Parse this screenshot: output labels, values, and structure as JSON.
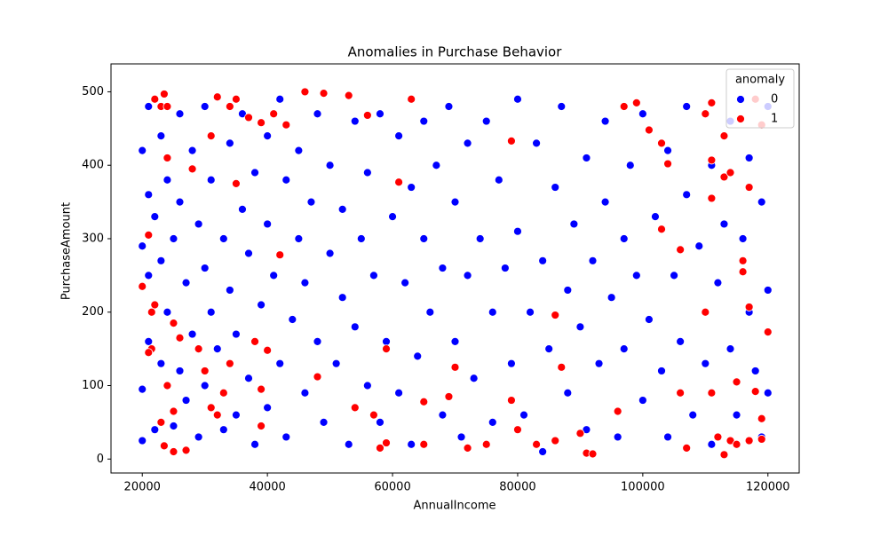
{
  "chart_data": {
    "type": "scatter",
    "title": "Anomalies in Purchase Behavior",
    "x_label": "AnnualIncome",
    "y_label": "PurchaseAmount",
    "xlim": [
      15000,
      125000
    ],
    "ylim": [
      -19,
      538
    ],
    "xticks": [
      20000,
      40000,
      60000,
      80000,
      100000,
      120000
    ],
    "yticks": [
      0,
      100,
      200,
      300,
      400,
      500
    ],
    "grid": false,
    "legend": "upper right",
    "legend_title": "anomaly",
    "series": [
      {
        "name": "0",
        "color": "#0000ff",
        "x": [
          20000,
          20000,
          20000,
          20000,
          21000,
          21000,
          21000,
          21000,
          22000,
          22000,
          23000,
          23000,
          23000,
          24000,
          24000,
          25000,
          25000,
          26000,
          26000,
          26000,
          27000,
          27000,
          28000,
          28000,
          29000,
          29000,
          30000,
          30000,
          30000,
          31000,
          31000,
          32000,
          33000,
          33000,
          34000,
          34000,
          35000,
          35000,
          36000,
          36000,
          37000,
          37000,
          38000,
          38000,
          39000,
          40000,
          40000,
          40000,
          41000,
          42000,
          42000,
          43000,
          43000,
          44000,
          45000,
          45000,
          46000,
          46000,
          47000,
          48000,
          48000,
          49000,
          50000,
          50000,
          51000,
          52000,
          52000,
          53000,
          54000,
          54000,
          55000,
          56000,
          56000,
          57000,
          58000,
          58000,
          59000,
          60000,
          61000,
          61000,
          62000,
          63000,
          63000,
          64000,
          65000,
          65000,
          66000,
          67000,
          68000,
          68000,
          69000,
          70000,
          70000,
          71000,
          72000,
          72000,
          73000,
          74000,
          75000,
          76000,
          76000,
          77000,
          78000,
          79000,
          80000,
          80000,
          81000,
          82000,
          83000,
          84000,
          84000,
          85000,
          86000,
          87000,
          88000,
          88000,
          89000,
          90000,
          91000,
          91000,
          92000,
          93000,
          94000,
          94000,
          95000,
          96000,
          97000,
          97000,
          98000,
          99000,
          100000,
          100000,
          101000,
          102000,
          103000,
          104000,
          104000,
          105000,
          106000,
          107000,
          107000,
          108000,
          109000,
          110000,
          111000,
          111000,
          112000,
          113000,
          114000,
          114000,
          115000,
          116000,
          117000,
          117000,
          118000,
          119000,
          119000,
          120000,
          120000,
          120000
        ],
        "values": [
          420,
          290,
          95,
          25,
          480,
          360,
          250,
          160,
          40,
          330,
          270,
          440,
          130,
          380,
          200,
          300,
          45,
          470,
          120,
          350,
          240,
          80,
          420,
          170,
          320,
          30,
          480,
          260,
          100,
          380,
          200,
          150,
          300,
          40,
          430,
          230,
          170,
          60,
          340,
          470,
          110,
          280,
          390,
          20,
          210,
          320,
          440,
          70,
          250,
          130,
          490,
          380,
          30,
          190,
          300,
          420,
          90,
          240,
          350,
          160,
          470,
          50,
          280,
          400,
          130,
          220,
          340,
          20,
          460,
          180,
          300,
          100,
          390,
          250,
          470,
          50,
          160,
          330,
          440,
          90,
          240,
          370,
          20,
          140,
          460,
          300,
          200,
          400,
          60,
          260,
          480,
          350,
          160,
          30,
          430,
          250,
          110,
          300,
          460,
          200,
          50,
          380,
          260,
          130,
          490,
          310,
          60,
          200,
          430,
          270,
          10,
          150,
          370,
          480,
          230,
          90,
          320,
          180,
          410,
          40,
          270,
          130,
          460,
          350,
          220,
          30,
          300,
          150,
          400,
          250,
          80,
          470,
          190,
          330,
          120,
          420,
          30,
          250,
          160,
          360,
          480,
          60,
          290,
          130,
          400,
          20,
          240,
          320,
          150,
          460,
          60,
          300,
          200,
          410,
          120,
          350,
          30,
          230,
          90,
          480
        ]
      },
      {
        "name": "1",
        "color": "#ff0000",
        "x": [
          20000,
          21000,
          21500,
          21500,
          22000,
          21000,
          22000,
          23000,
          23500,
          24000,
          24000,
          24000,
          23000,
          23500,
          25000,
          25000,
          25000,
          26000,
          27000,
          28000,
          29000,
          30000,
          31000,
          31000,
          32000,
          32000,
          33000,
          34000,
          35000,
          34000,
          35000,
          37000,
          38000,
          39000,
          39000,
          39000,
          40000,
          41000,
          42000,
          43000,
          46000,
          48000,
          49000,
          53000,
          54000,
          56000,
          57000,
          58000,
          59000,
          59000,
          61000,
          63000,
          65000,
          65000,
          69000,
          70000,
          72000,
          75000,
          79000,
          79000,
          80000,
          83000,
          86000,
          86000,
          87000,
          90000,
          91000,
          92000,
          96000,
          97000,
          99000,
          101000,
          103000,
          103000,
          104000,
          106000,
          106000,
          107000,
          110000,
          110000,
          111000,
          111000,
          111000,
          111000,
          112000,
          113000,
          113000,
          113000,
          114000,
          114000,
          115000,
          115000,
          116000,
          116000,
          117000,
          117000,
          117000,
          118000,
          118000,
          119000,
          119000,
          119000,
          120000
        ],
        "values": [
          235,
          305,
          150,
          200,
          210,
          145,
          490,
          480,
          497,
          480,
          410,
          100,
          50,
          18,
          10,
          65,
          185,
          165,
          12,
          395,
          150,
          120,
          440,
          70,
          493,
          60,
          90,
          480,
          490,
          130,
          375,
          465,
          160,
          95,
          458,
          45,
          148,
          470,
          278,
          455,
          500,
          112,
          498,
          495,
          70,
          468,
          60,
          15,
          22,
          150,
          377,
          490,
          78,
          20,
          85,
          125,
          15,
          20,
          433,
          80,
          40,
          20,
          25,
          196,
          125,
          35,
          8,
          7,
          65,
          480,
          485,
          448,
          430,
          313,
          402,
          285,
          90,
          15,
          200,
          470,
          485,
          407,
          355,
          90,
          30,
          440,
          384,
          6,
          390,
          25,
          20,
          105,
          270,
          255,
          370,
          207,
          25,
          92,
          490,
          455,
          55,
          27,
          173
        ]
      }
    ]
  }
}
